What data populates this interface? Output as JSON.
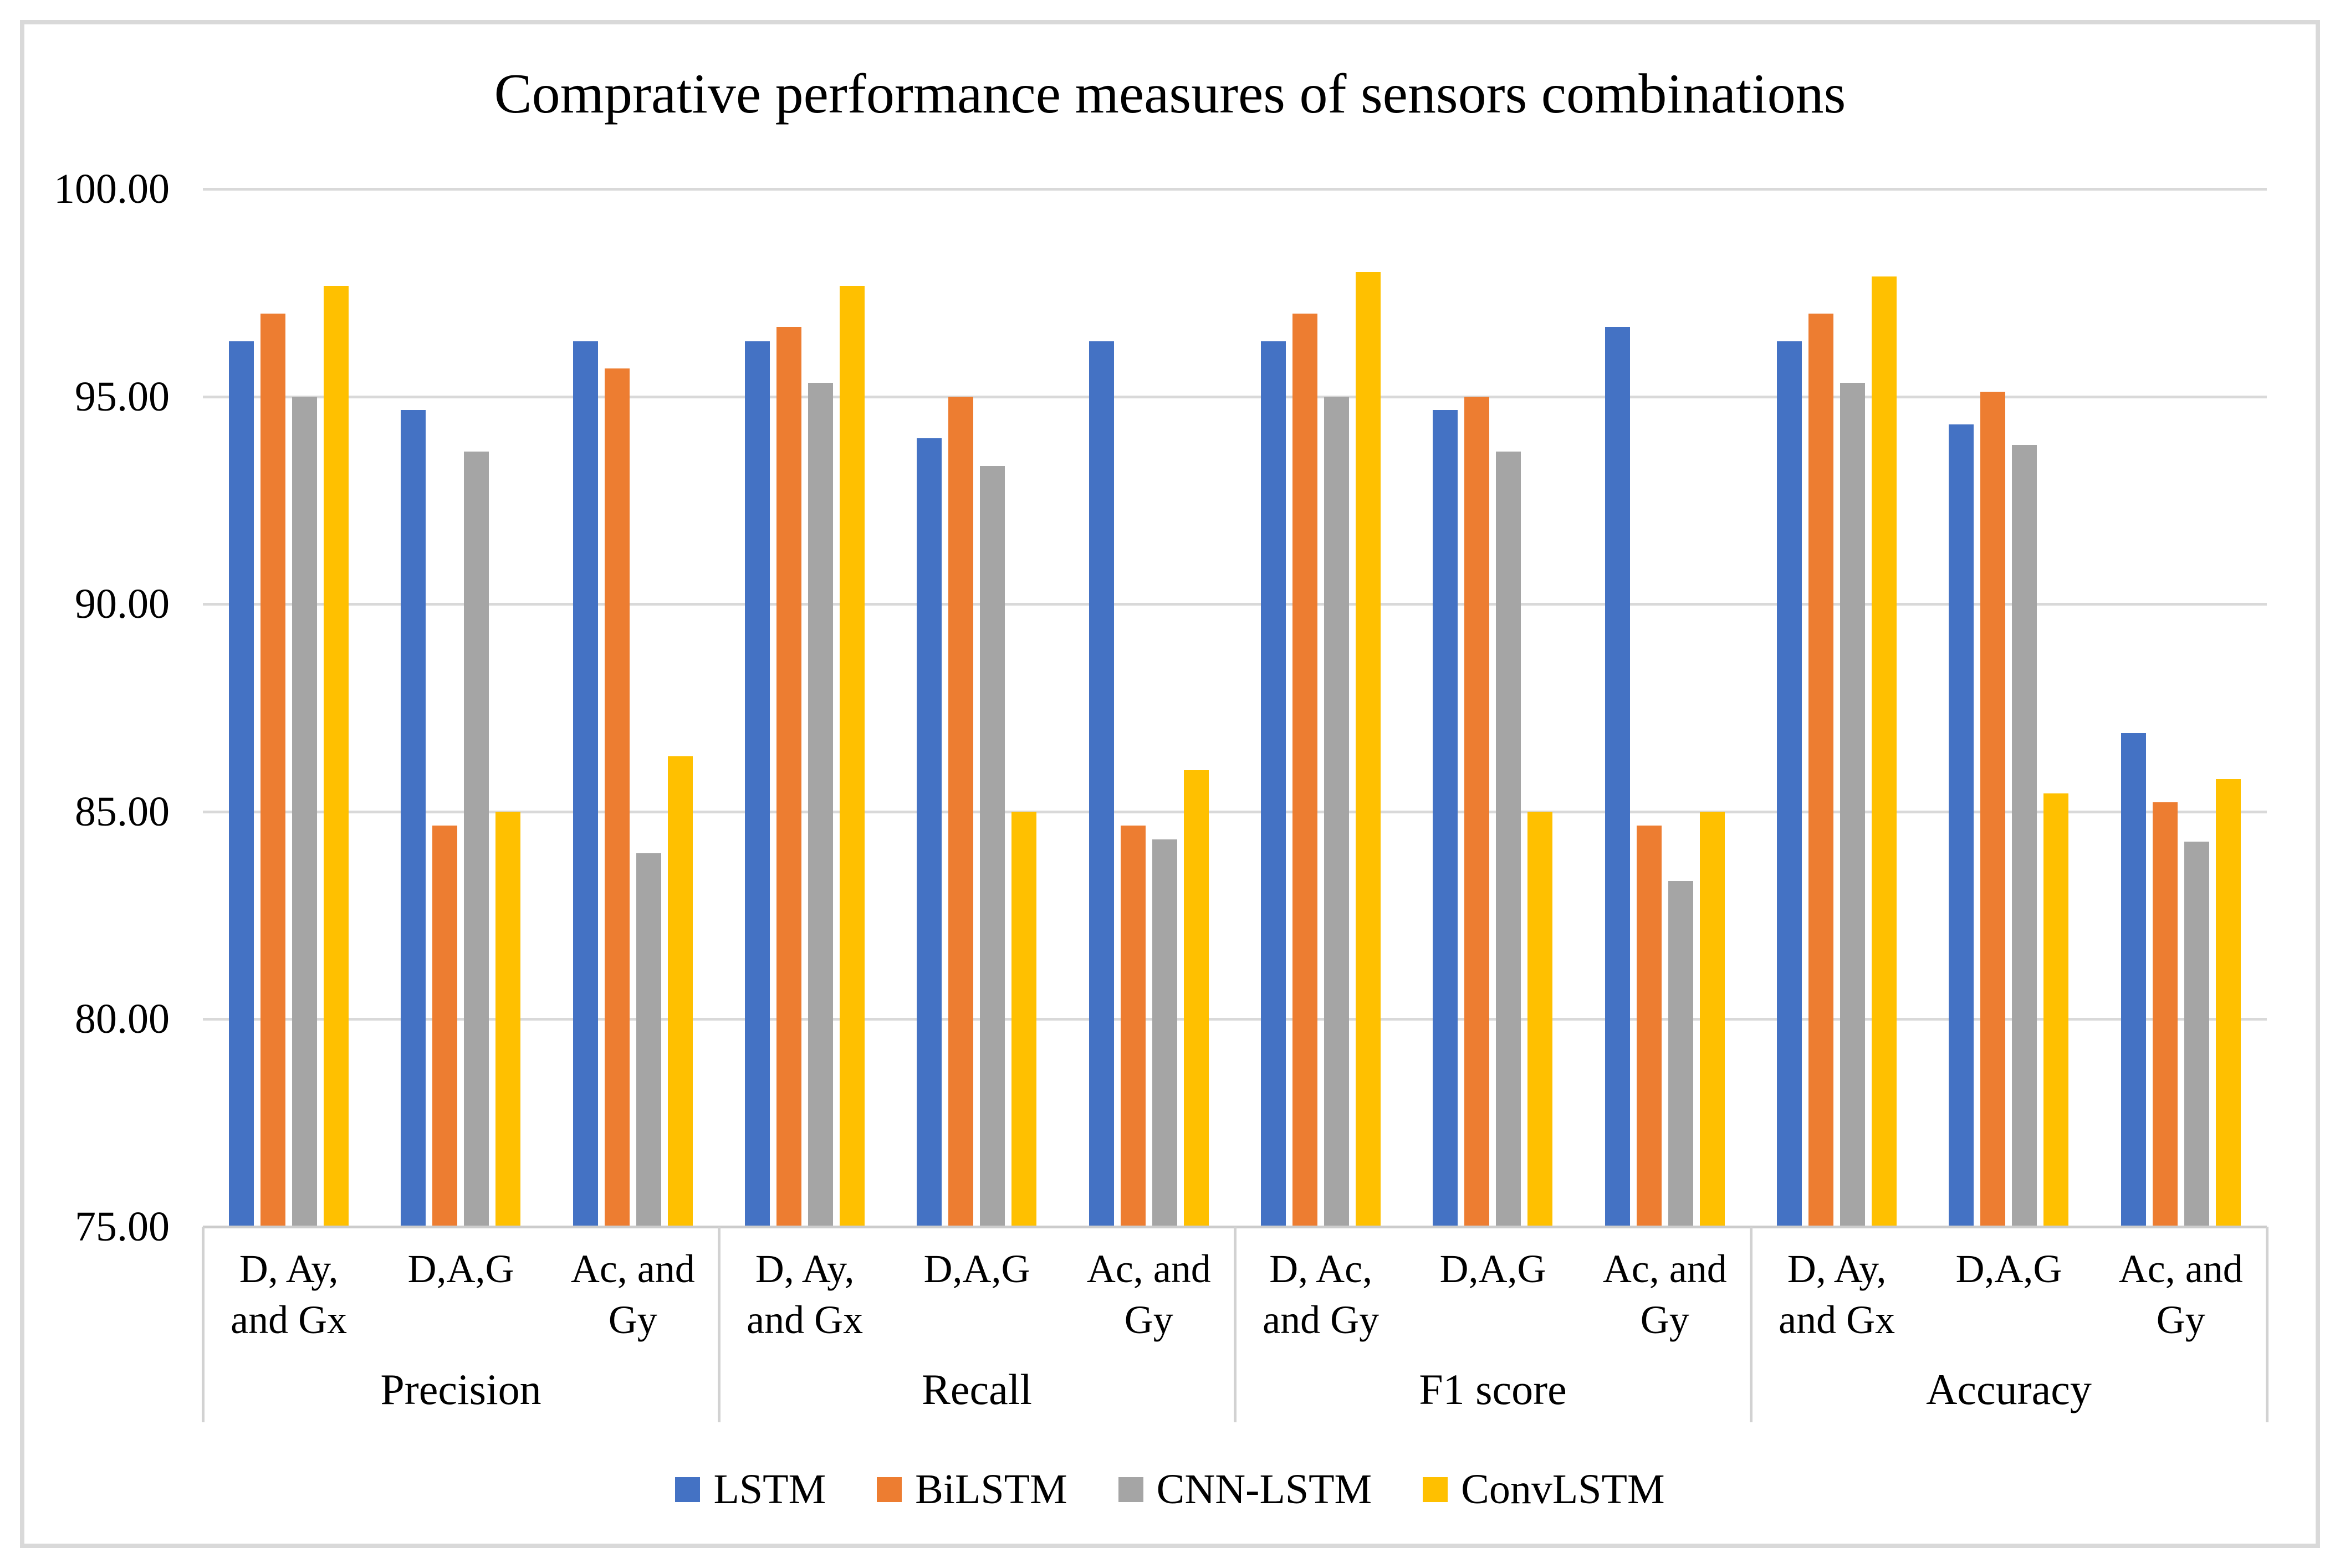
{
  "chart_data": {
    "type": "bar",
    "title": "Comprative performance measures of sensors combinations",
    "ylabel": "",
    "xlabel": "",
    "ylim": [
      75,
      100
    ],
    "grid": "horizontal",
    "legend_position": "bottom",
    "yticks": [
      {
        "value": 100,
        "label": "100.00"
      },
      {
        "value": 95,
        "label": "95.00"
      },
      {
        "value": 90,
        "label": "90.00"
      },
      {
        "value": 85,
        "label": "85.00"
      },
      {
        "value": 80,
        "label": "80.00"
      },
      {
        "value": 75,
        "label": "75.00"
      }
    ],
    "series": [
      {
        "name": "LSTM",
        "color": "#4472C4"
      },
      {
        "name": "BiLSTM",
        "color": "#ED7D31"
      },
      {
        "name": "CNN-LSTM",
        "color": "#A5A5A5"
      },
      {
        "name": "ConvLSTM",
        "color": "#FFC000"
      }
    ],
    "groups": [
      {
        "label": "Precision",
        "clusters": [
          {
            "label": "D, Ay, and Gx",
            "values": [
              96.33,
              97.0,
              95.0,
              97.67
            ]
          },
          {
            "label": "D,A,G",
            "values": [
              94.67,
              84.67,
              93.67,
              85.0
            ]
          },
          {
            "label": "Ac, and Gy",
            "values": [
              96.33,
              95.67,
              84.0,
              86.33
            ]
          }
        ]
      },
      {
        "label": "Recall",
        "clusters": [
          {
            "label": "D, Ay, and Gx",
            "values": [
              96.33,
              96.67,
              95.33,
              97.67
            ]
          },
          {
            "label": "D,A,G",
            "values": [
              94.0,
              95.0,
              93.33,
              85.0
            ]
          },
          {
            "label": "Ac, and Gy",
            "values": [
              96.33,
              84.67,
              84.33,
              86.0
            ]
          }
        ]
      },
      {
        "label": "F1 score",
        "clusters": [
          {
            "label": "D, Ac, and Gy",
            "values": [
              96.33,
              97.0,
              95.0,
              98.0
            ]
          },
          {
            "label": "D,A,G",
            "values": [
              94.67,
              95.0,
              93.67,
              85.0
            ]
          },
          {
            "label": "Ac, and Gy",
            "values": [
              96.67,
              84.67,
              83.33,
              85.0
            ]
          }
        ]
      },
      {
        "label": "Accuracy",
        "clusters": [
          {
            "label": "D, Ay, and Gx",
            "values": [
              96.33,
              97.0,
              95.33,
              97.89
            ]
          },
          {
            "label": "D,A,G",
            "values": [
              94.33,
              95.11,
              93.83,
              85.44
            ]
          },
          {
            "label": "Ac, and Gy",
            "values": [
              86.89,
              85.22,
              84.28,
              85.78
            ]
          }
        ]
      }
    ],
    "colors": {
      "gridline": "#D9D9D9",
      "axis_line": "#CCCCCC",
      "separator": "#D2D2D2",
      "frame": "#D9D9D9",
      "background": "#FFFFFF",
      "text": "#000000"
    }
  }
}
